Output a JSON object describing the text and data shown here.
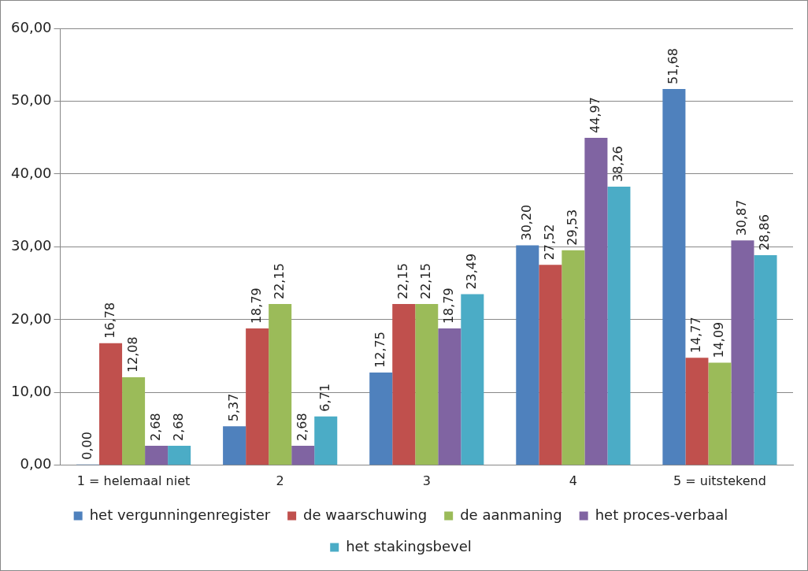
{
  "chart_data": {
    "type": "bar",
    "categories": [
      "1 = helemaal niet",
      "2",
      "3",
      "4",
      "5 = uitstekend"
    ],
    "series": [
      {
        "name": "het vergunningenregister",
        "color": "#4f81bd",
        "values": [
          0.0,
          5.37,
          12.75,
          30.2,
          51.68
        ],
        "value_labels": [
          "0,00",
          "5,37",
          "12,75",
          "30,20",
          "51,68"
        ]
      },
      {
        "name": "de waarschuwing",
        "color": "#c0504d",
        "values": [
          16.78,
          18.79,
          22.15,
          27.52,
          14.77
        ],
        "value_labels": [
          "16,78",
          "18,79",
          "22,15",
          "27,52",
          "14,77"
        ]
      },
      {
        "name": "de aanmaning",
        "color": "#9bbb59",
        "values": [
          12.08,
          22.15,
          22.15,
          29.53,
          14.09
        ],
        "value_labels": [
          "12,08",
          "22,15",
          "22,15",
          "29,53",
          "14,09"
        ]
      },
      {
        "name": "het proces-verbaal",
        "color": "#8064a2",
        "values": [
          2.68,
          2.68,
          18.79,
          44.97,
          30.87
        ],
        "value_labels": [
          "2,68",
          "2,68",
          "18,79",
          "44,97",
          "30,87"
        ]
      },
      {
        "name": "het stakingsbevel",
        "color": "#4bacc6",
        "values": [
          2.68,
          6.71,
          23.49,
          38.26,
          28.86
        ],
        "value_labels": [
          "2,68",
          "6,71",
          "23,49",
          "38,26",
          "28,86"
        ]
      }
    ],
    "ylim": [
      0,
      60
    ],
    "yticks": [
      {
        "value": 0,
        "label": "0,00"
      },
      {
        "value": 10,
        "label": "10,00"
      },
      {
        "value": 20,
        "label": "20,00"
      },
      {
        "value": 30,
        "label": "30,00"
      },
      {
        "value": 40,
        "label": "40,00"
      },
      {
        "value": 50,
        "label": "50,00"
      },
      {
        "value": 60,
        "label": "60,00"
      }
    ],
    "grid": "y",
    "legend": "bottom"
  }
}
